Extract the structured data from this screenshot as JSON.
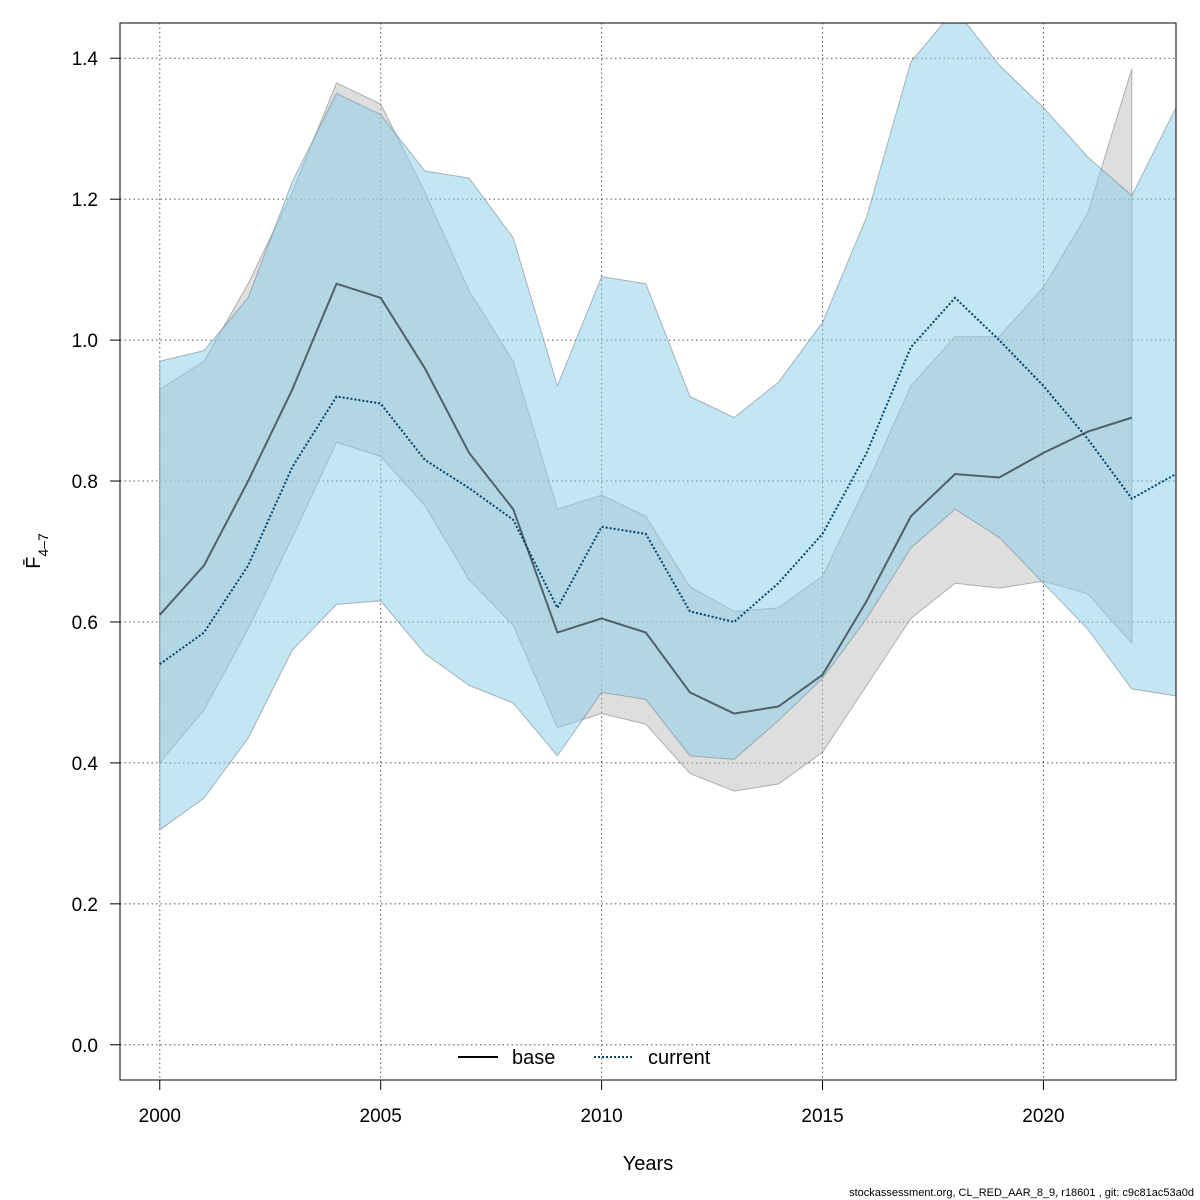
{
  "chart_data": {
    "type": "line",
    "title": "",
    "xlabel": "Years",
    "ylabel": "F̄",
    "ylabel_subscript": "4–7",
    "xlim": [
      1999.1,
      2023
    ],
    "ylim": [
      -0.05,
      1.45
    ],
    "grid": true,
    "legend_position": "bottom-center",
    "x_ticks": [
      2000,
      2005,
      2010,
      2015,
      2020
    ],
    "y_ticks": [
      0.0,
      0.2,
      0.4,
      0.6,
      0.8,
      1.0,
      1.2,
      1.4
    ],
    "x_tick_labels": [
      "2000",
      "2005",
      "2010",
      "2015",
      "2020"
    ],
    "y_tick_labels": [
      "0.0",
      "0.2",
      "0.4",
      "0.6",
      "0.8",
      "1.0",
      "1.2",
      "1.4"
    ],
    "series": [
      {
        "name": "base",
        "line_style": "solid",
        "line_color": "#000000",
        "band_color": "#bebebe",
        "x": [
          2000,
          2001,
          2002,
          2003,
          2004,
          2005,
          2006,
          2007,
          2008,
          2009,
          2010,
          2011,
          2012,
          2013,
          2014,
          2015,
          2016,
          2017,
          2018,
          2019,
          2020,
          2021,
          2022
        ],
        "values": [
          0.61,
          0.68,
          0.8,
          0.93,
          1.08,
          1.06,
          0.96,
          0.84,
          0.76,
          0.585,
          0.605,
          0.585,
          0.5,
          0.47,
          0.48,
          0.525,
          0.63,
          0.75,
          0.81,
          0.805,
          0.84,
          0.87,
          0.89
        ],
        "lower": [
          0.4,
          0.475,
          0.59,
          0.72,
          0.855,
          0.835,
          0.765,
          0.66,
          0.595,
          0.45,
          0.47,
          0.455,
          0.385,
          0.36,
          0.37,
          0.415,
          0.51,
          0.605,
          0.655,
          0.648,
          0.658,
          0.64,
          0.57
        ],
        "upper": [
          0.93,
          0.97,
          1.08,
          1.21,
          1.365,
          1.335,
          1.21,
          1.07,
          0.97,
          0.76,
          0.78,
          0.75,
          0.65,
          0.615,
          0.62,
          0.665,
          0.795,
          0.935,
          1.005,
          1.005,
          1.075,
          1.18,
          1.385
        ]
      },
      {
        "name": "current",
        "line_style": "dotted",
        "line_color": "#00436b",
        "band_color": "#87ceeb",
        "x": [
          2000,
          2001,
          2002,
          2003,
          2004,
          2005,
          2006,
          2007,
          2008,
          2009,
          2010,
          2011,
          2012,
          2013,
          2014,
          2015,
          2016,
          2017,
          2018,
          2019,
          2020,
          2021,
          2022,
          2023
        ],
        "values": [
          0.54,
          0.585,
          0.68,
          0.82,
          0.92,
          0.91,
          0.83,
          0.79,
          0.745,
          0.62,
          0.735,
          0.725,
          0.615,
          0.6,
          0.655,
          0.725,
          0.84,
          0.99,
          1.06,
          1.0,
          0.935,
          0.86,
          0.775,
          0.81
        ],
        "lower": [
          0.305,
          0.35,
          0.435,
          0.56,
          0.625,
          0.63,
          0.555,
          0.51,
          0.485,
          0.41,
          0.5,
          0.49,
          0.41,
          0.405,
          0.46,
          0.52,
          0.605,
          0.705,
          0.76,
          0.72,
          0.655,
          0.59,
          0.505,
          0.495
        ],
        "upper": [
          0.97,
          0.985,
          1.06,
          1.225,
          1.35,
          1.32,
          1.24,
          1.23,
          1.145,
          0.935,
          1.09,
          1.08,
          0.92,
          0.89,
          0.94,
          1.025,
          1.175,
          1.395,
          1.47,
          1.39,
          1.33,
          1.26,
          1.205,
          1.33
        ]
      }
    ]
  },
  "legend": {
    "base_label": "base",
    "current_label": "current"
  },
  "axes": {
    "x_title": "Years",
    "y_title_main": "F̄",
    "y_title_sub": "4–7"
  },
  "footer": {
    "text": "stockassessment.org, CL_RED_AAR_8_9, r18601 , git: c9c81ac53a0d"
  },
  "colors": {
    "base_band": "#bebebe",
    "current_band": "#87ceeb",
    "base_line": "#000000",
    "current_line": "#00436b"
  }
}
